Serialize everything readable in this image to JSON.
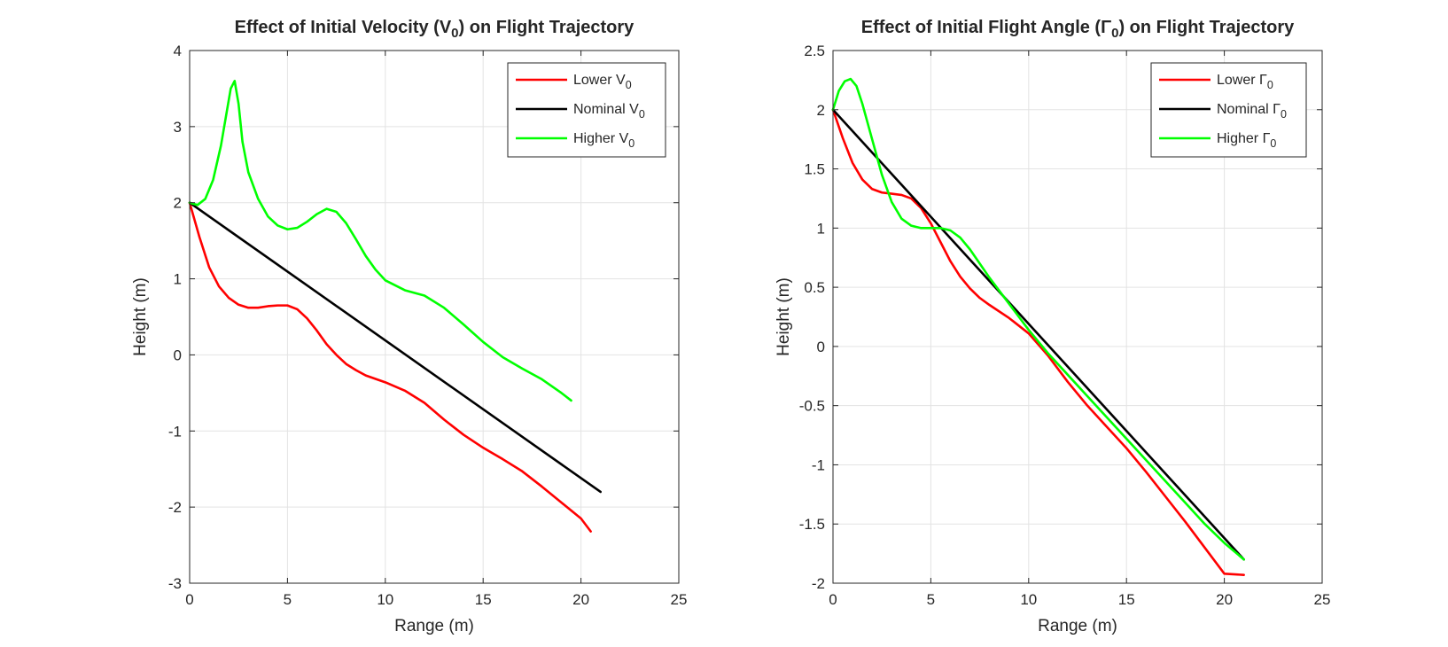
{
  "chart_data": [
    {
      "type": "line",
      "title": {
        "text": "Effect of Initial Velocity (V",
        "sub": "0",
        "suffix": ") on Flight Trajectory"
      },
      "xlabel": "Range (m)",
      "ylabel": "Height (m)",
      "xlim": [
        0,
        25
      ],
      "ylim": [
        -3,
        4
      ],
      "xticks": [
        0,
        5,
        10,
        15,
        20,
        25
      ],
      "yticks": [
        -3,
        -2,
        -1,
        0,
        1,
        2,
        3,
        4
      ],
      "xtick_labels": [
        "0",
        "5",
        "10",
        "15",
        "20",
        "25"
      ],
      "ytick_labels": [
        "-3",
        "-2",
        "-1",
        "0",
        "1",
        "2",
        "3",
        "4"
      ],
      "grid": true,
      "legend_position": "top-right",
      "series": [
        {
          "label": "Lower V",
          "label_sub": "0",
          "color": "#ff0000",
          "x": [
            0,
            0.5,
            1,
            1.5,
            2,
            2.5,
            3,
            3.5,
            4,
            4.5,
            5,
            5.5,
            6,
            6.5,
            7,
            7.5,
            8,
            8.5,
            9,
            10,
            11,
            12,
            13,
            14,
            15,
            16,
            17,
            18,
            19,
            20,
            20.5
          ],
          "y": [
            2.0,
            1.55,
            1.15,
            0.9,
            0.75,
            0.66,
            0.62,
            0.62,
            0.64,
            0.65,
            0.65,
            0.6,
            0.48,
            0.32,
            0.14,
            0.0,
            -0.12,
            -0.2,
            -0.27,
            -0.36,
            -0.47,
            -0.63,
            -0.85,
            -1.05,
            -1.22,
            -1.37,
            -1.53,
            -1.73,
            -1.94,
            -2.15,
            -2.32
          ]
        },
        {
          "label": "Nominal V",
          "label_sub": "0",
          "color": "#000000",
          "x": [
            0,
            21
          ],
          "y": [
            2.0,
            -1.8
          ]
        },
        {
          "label": "Higher V",
          "label_sub": "0",
          "color": "#00ff00",
          "x": [
            0,
            0.4,
            0.8,
            1.2,
            1.6,
            1.9,
            2.1,
            2.3,
            2.5,
            2.7,
            3.0,
            3.5,
            4.0,
            4.5,
            5.0,
            5.5,
            6.0,
            6.5,
            7.0,
            7.5,
            8.0,
            8.5,
            9.0,
            9.5,
            10.0,
            11.0,
            12.0,
            13.0,
            14.0,
            15.0,
            16.0,
            17.0,
            18.0,
            19.0,
            19.5
          ],
          "y": [
            2.0,
            1.97,
            2.05,
            2.3,
            2.75,
            3.2,
            3.5,
            3.6,
            3.3,
            2.8,
            2.4,
            2.05,
            1.82,
            1.7,
            1.65,
            1.67,
            1.75,
            1.85,
            1.92,
            1.88,
            1.73,
            1.52,
            1.3,
            1.12,
            0.98,
            0.85,
            0.78,
            0.62,
            0.4,
            0.17,
            -0.03,
            -0.18,
            -0.32,
            -0.5,
            -0.6
          ]
        }
      ]
    },
    {
      "type": "line",
      "title": {
        "text": "Effect of Initial Flight Angle (Γ",
        "sub": "0",
        "suffix": ") on Flight Trajectory"
      },
      "xlabel": "Range (m)",
      "ylabel": "Height (m)",
      "xlim": [
        0,
        25
      ],
      "ylim": [
        -2,
        2.5
      ],
      "xticks": [
        0,
        5,
        10,
        15,
        20,
        25
      ],
      "yticks": [
        -2,
        -1.5,
        -1,
        -0.5,
        0,
        0.5,
        1,
        1.5,
        2,
        2.5
      ],
      "xtick_labels": [
        "0",
        "5",
        "10",
        "15",
        "20",
        "25"
      ],
      "ytick_labels": [
        "-2",
        "-1.5",
        "-1",
        "-0.5",
        "0",
        "0.5",
        "1",
        "1.5",
        "2",
        "2.5"
      ],
      "grid": true,
      "legend_position": "top-right",
      "series": [
        {
          "label": "Lower Γ",
          "label_sub": "0",
          "color": "#ff0000",
          "x": [
            0,
            0.5,
            1,
            1.5,
            2,
            2.5,
            3,
            3.5,
            4,
            4.5,
            5,
            5.5,
            6,
            6.5,
            7,
            7.5,
            8,
            9,
            10,
            11,
            12,
            13,
            14,
            15,
            16,
            17,
            18,
            19,
            20,
            21
          ],
          "y": [
            2.0,
            1.76,
            1.55,
            1.41,
            1.33,
            1.3,
            1.29,
            1.28,
            1.25,
            1.17,
            1.04,
            0.88,
            0.72,
            0.59,
            0.49,
            0.41,
            0.35,
            0.24,
            0.11,
            -0.08,
            -0.3,
            -0.5,
            -0.68,
            -0.86,
            -1.06,
            -1.27,
            -1.48,
            -1.7,
            -1.92,
            -1.93
          ]
        },
        {
          "label": "Nominal Γ",
          "label_sub": "0",
          "color": "#000000",
          "x": [
            0,
            21
          ],
          "y": [
            2.0,
            -1.8
          ]
        },
        {
          "label": "Higher Γ",
          "label_sub": "0",
          "color": "#00ff00",
          "x": [
            0,
            0.3,
            0.6,
            0.9,
            1.2,
            1.5,
            2.0,
            2.5,
            3.0,
            3.5,
            4.0,
            4.5,
            5.0,
            5.5,
            6.0,
            6.5,
            7.0,
            7.5,
            8.0,
            9.0,
            10.0,
            11.0,
            12.0,
            13.0,
            14.0,
            15.0,
            16.0,
            17.0,
            18.0,
            19.0,
            20.0,
            21.0
          ],
          "y": [
            2.0,
            2.16,
            2.24,
            2.26,
            2.2,
            2.05,
            1.75,
            1.45,
            1.22,
            1.08,
            1.02,
            1.0,
            1.0,
            1.0,
            0.98,
            0.92,
            0.82,
            0.7,
            0.58,
            0.36,
            0.14,
            -0.06,
            -0.24,
            -0.42,
            -0.6,
            -0.78,
            -0.96,
            -1.14,
            -1.32,
            -1.5,
            -1.66,
            -1.8
          ]
        }
      ]
    }
  ]
}
